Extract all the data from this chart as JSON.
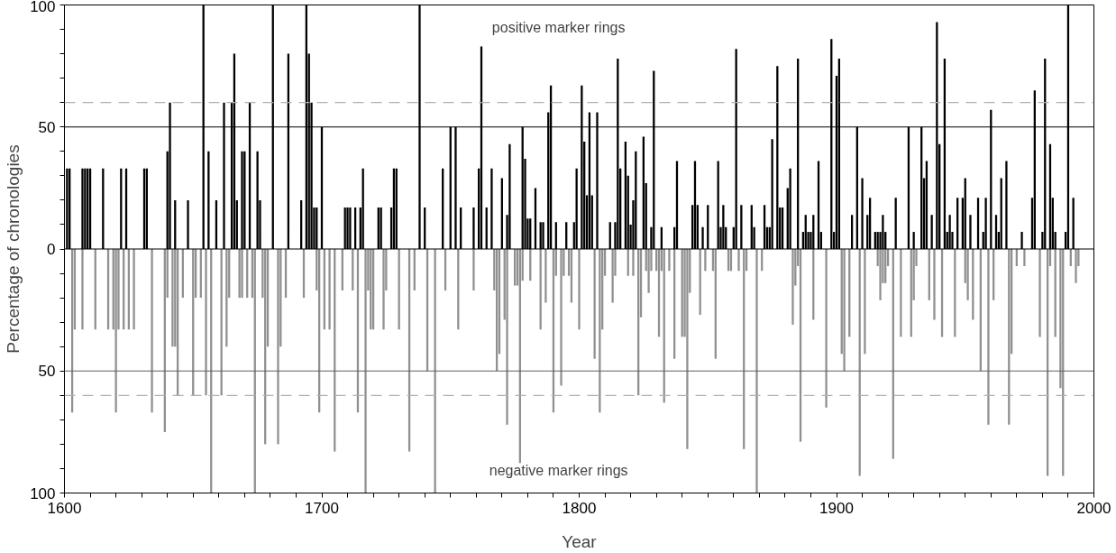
{
  "chart_data": {
    "type": "bar",
    "xlabel": "Year",
    "ylabel": "Percentage of chronologies",
    "annotations": [
      "positive marker rings",
      "negative marker rings"
    ],
    "xlim": [
      1600,
      2000
    ],
    "ylim": [
      -100,
      100
    ],
    "xticks": [
      1600,
      {
        "value": 1610,
        "label": null
      },
      {
        "value": 1620,
        "label": null
      },
      {
        "value": 1630,
        "label": null
      },
      {
        "value": 1640,
        "label": null
      },
      {
        "value": 1650,
        "label": null
      },
      {
        "value": 1660,
        "label": null
      },
      {
        "value": 1670,
        "label": null
      },
      {
        "value": 1680,
        "label": null
      },
      {
        "value": 1690,
        "label": null
      },
      1700,
      {
        "value": 1710,
        "label": null
      },
      {
        "value": 1720,
        "label": null
      },
      {
        "value": 1730,
        "label": null
      },
      {
        "value": 1740,
        "label": null
      },
      {
        "value": 1750,
        "label": null
      },
      {
        "value": 1760,
        "label": null
      },
      {
        "value": 1770,
        "label": null
      },
      {
        "value": 1780,
        "label": null
      },
      {
        "value": 1790,
        "label": null
      },
      1800,
      {
        "value": 1810,
        "label": null
      },
      {
        "value": 1820,
        "label": null
      },
      {
        "value": 1830,
        "label": null
      },
      {
        "value": 1840,
        "label": null
      },
      {
        "value": 1850,
        "label": null
      },
      {
        "value": 1860,
        "label": null
      },
      {
        "value": 1870,
        "label": null
      },
      {
        "value": 1880,
        "label": null
      },
      {
        "value": 1890,
        "label": null
      },
      1900,
      {
        "value": 1910,
        "label": null
      },
      {
        "value": 1920,
        "label": null
      },
      {
        "value": 1930,
        "label": null
      },
      {
        "value": 1940,
        "label": null
      },
      {
        "value": 1950,
        "label": null
      },
      {
        "value": 1960,
        "label": null
      },
      {
        "value": 1970,
        "label": null
      },
      {
        "value": 1980,
        "label": null
      },
      {
        "value": 1990,
        "label": null
      },
      2000
    ],
    "yticks": [
      {
        "value": -100,
        "label": "100"
      },
      {
        "value": -90,
        "label": null
      },
      {
        "value": -80,
        "label": null
      },
      {
        "value": -70,
        "label": null
      },
      {
        "value": -60,
        "label": null
      },
      {
        "value": -50,
        "label": "50"
      },
      {
        "value": -40,
        "label": null
      },
      {
        "value": -30,
        "label": null
      },
      {
        "value": -20,
        "label": null
      },
      {
        "value": -10,
        "label": null
      },
      0,
      {
        "value": 10,
        "label": null
      },
      {
        "value": 20,
        "label": null
      },
      {
        "value": 30,
        "label": null
      },
      {
        "value": 40,
        "label": null
      },
      50,
      {
        "value": 60,
        "label": null
      },
      {
        "value": 70,
        "label": null
      },
      {
        "value": 80,
        "label": null
      },
      {
        "value": 90,
        "label": null
      },
      100
    ],
    "ref_lines": [
      {
        "axis": "y",
        "value": 50,
        "color": "#000000",
        "line_style": "solid"
      },
      {
        "axis": "y",
        "value": -50,
        "color": "#606060",
        "line_style": "solid"
      },
      {
        "axis": "y",
        "value": 60,
        "color": "#b0b0b0",
        "line_style": "dashed"
      },
      {
        "axis": "y",
        "value": -60,
        "color": "#b0b0b0",
        "line_style": "dashed"
      },
      {
        "axis": "y",
        "value": 0,
        "color": "#000000",
        "line_style": "solid"
      }
    ],
    "grid": false,
    "series": [
      {
        "color": "#000000",
        "x": [
          1601,
          1602,
          1607,
          1608,
          1609,
          1610,
          1615,
          1622,
          1624,
          1631,
          1632,
          1640,
          1641,
          1643,
          1648,
          1654,
          1656,
          1659,
          1662,
          1665,
          1666,
          1667,
          1669,
          1670,
          1672,
          1675,
          1676,
          1681,
          1687,
          1692,
          1694,
          1695,
          1696,
          1697,
          1698,
          1700,
          1709,
          1710,
          1711,
          1713,
          1715,
          1716,
          1722,
          1723,
          1727,
          1728,
          1729,
          1738,
          1740,
          1747,
          1750,
          1752,
          1754,
          1759,
          1761,
          1762,
          1764,
          1766,
          1770,
          1772,
          1773,
          1778,
          1779,
          1780,
          1781,
          1783,
          1785,
          1786,
          1788,
          1789,
          1791,
          1795,
          1798,
          1799,
          1801,
          1802,
          1803,
          1804,
          1805,
          1807,
          1812,
          1814,
          1815,
          1816,
          1818,
          1819,
          1820,
          1821,
          1822,
          1825,
          1826,
          1828,
          1829,
          1832,
          1837,
          1838,
          1844,
          1845,
          1846,
          1848,
          1850,
          1854,
          1855,
          1856,
          1857,
          1860,
          1861,
          1863,
          1867,
          1868,
          1872,
          1873,
          1874,
          1875,
          1877,
          1878,
          1879,
          1881,
          1882,
          1885,
          1887,
          1888,
          1889,
          1890,
          1891,
          1893,
          1894,
          1898,
          1899,
          1900,
          1901,
          1906,
          1908,
          1910,
          1912,
          1913,
          1915,
          1916,
          1917,
          1918,
          1919,
          1923,
          1928,
          1930,
          1933,
          1934,
          1935,
          1937,
          1939,
          1940,
          1942,
          1943,
          1944,
          1945,
          1947,
          1949,
          1950,
          1952,
          1955,
          1957,
          1958,
          1960,
          1962,
          1963,
          1964,
          1966,
          1972,
          1976,
          1977,
          1980,
          1981,
          1983,
          1984,
          1985,
          1989,
          1990,
          1992
        ],
        "values": [
          33,
          33,
          33,
          33,
          33,
          33,
          33,
          33,
          33,
          33,
          33,
          40,
          60,
          20,
          20,
          100,
          40,
          20,
          60,
          60,
          80,
          20,
          40,
          40,
          60,
          40,
          20,
          100,
          80,
          20,
          100,
          80,
          60,
          17,
          17,
          50,
          17,
          17,
          17,
          17,
          17,
          33,
          17,
          17,
          17,
          33,
          33,
          100,
          17,
          33,
          50,
          50,
          17,
          17,
          33,
          83,
          17,
          33,
          29,
          14,
          43,
          50,
          37,
          12.5,
          12.5,
          25,
          11,
          11,
          56,
          67,
          11,
          11,
          11,
          33,
          67,
          44,
          22,
          56,
          22,
          56,
          11,
          11,
          78,
          33,
          44,
          30,
          10,
          20,
          40,
          46,
          27,
          9,
          73,
          9,
          9,
          36,
          18,
          36,
          18,
          9,
          18,
          36,
          9,
          18,
          9,
          9,
          82,
          18,
          18,
          9,
          18,
          9,
          9,
          45,
          75,
          17,
          17,
          25,
          33,
          78,
          7,
          14,
          7,
          7,
          14,
          36,
          7,
          86,
          7,
          71,
          78,
          14,
          50,
          29,
          14,
          21,
          7,
          7,
          7,
          14,
          7,
          21,
          50,
          7,
          50,
          29,
          36,
          14,
          93,
          43,
          78,
          7,
          14,
          7,
          21,
          21,
          29,
          14,
          21,
          7,
          21,
          57,
          14,
          7,
          29,
          36,
          7,
          21,
          65,
          7,
          78,
          43,
          21,
          7,
          7,
          100,
          21
        ]
      },
      {
        "color": "#909090",
        "x": [
          1603,
          1604,
          1607,
          1612,
          1617,
          1619,
          1620,
          1621,
          1623,
          1625,
          1627,
          1634,
          1639,
          1640,
          1642,
          1643,
          1644,
          1646,
          1650,
          1651,
          1653,
          1655,
          1657,
          1661,
          1663,
          1664,
          1668,
          1669,
          1671,
          1673,
          1674,
          1677,
          1678,
          1679,
          1683,
          1684,
          1686,
          1693,
          1698,
          1699,
          1701,
          1703,
          1705,
          1708,
          1712,
          1714,
          1717,
          1718,
          1719,
          1720,
          1724,
          1725,
          1730,
          1734,
          1736,
          1741,
          1744,
          1748,
          1753,
          1759,
          1767,
          1768,
          1769,
          1771,
          1772,
          1775,
          1776,
          1777,
          1778,
          1781,
          1785,
          1787,
          1790,
          1791,
          1793,
          1794,
          1796,
          1797,
          1800,
          1806,
          1808,
          1809,
          1810,
          1813,
          1814,
          1819,
          1821,
          1823,
          1824,
          1826,
          1827,
          1828,
          1830,
          1831,
          1832,
          1833,
          1835,
          1837,
          1840,
          1841,
          1842,
          1843,
          1847,
          1849,
          1852,
          1853,
          1858,
          1859,
          1862,
          1864,
          1865,
          1869,
          1871,
          1883,
          1884,
          1885,
          1886,
          1891,
          1896,
          1902,
          1903,
          1905,
          1909,
          1911,
          1916,
          1917,
          1918,
          1919,
          1920,
          1922,
          1925,
          1929,
          1930,
          1931,
          1936,
          1938,
          1941,
          1946,
          1950,
          1951,
          1953,
          1956,
          1959,
          1961,
          1967,
          1968,
          1970,
          1973,
          1979,
          1982,
          1983,
          1985,
          1987,
          1988,
          1991,
          1993,
          1994
        ],
        "values": [
          -67,
          -33,
          -33,
          -33,
          -33,
          -33,
          -67,
          -33,
          -33,
          -33,
          -33,
          -67,
          -75,
          -20,
          -40,
          -40,
          -60,
          -20,
          -60,
          -20,
          -20,
          -60,
          -100,
          -60,
          -40,
          -20,
          -20,
          -20,
          -20,
          -20,
          -100,
          -20,
          -80,
          -40,
          -80,
          -40,
          -20,
          -20,
          -17,
          -67,
          -33,
          -33,
          -83,
          -17,
          -17,
          -67,
          -100,
          -17,
          -33,
          -33,
          -33,
          -17,
          -33,
          -83,
          -17,
          -50,
          -100,
          -17,
          -33,
          -17,
          -17,
          -50,
          -43,
          -29,
          -72,
          -15,
          -15,
          -88,
          -13,
          -13,
          -33,
          -22,
          -67,
          -11,
          -56,
          -11,
          -11,
          -22,
          -33,
          -45,
          -67,
          -33,
          -11,
          -22,
          -11,
          -11,
          -11,
          -60,
          -28,
          -9,
          -18,
          -9,
          -9,
          -36,
          -9,
          -63,
          -9,
          -45,
          -36,
          -36,
          -82,
          -18,
          -27,
          -9,
          -9,
          -45,
          -9,
          -9,
          -9,
          -82,
          -9,
          -100,
          -9,
          -31,
          -15,
          -7,
          -79,
          -29,
          -65,
          -43,
          -50,
          -36,
          -93,
          -43,
          -7,
          -21,
          -14,
          -14,
          -7,
          -86,
          -36,
          -36,
          -21,
          -7,
          -21,
          -29,
          -36,
          -36,
          -14,
          -21,
          -29,
          -50,
          -72,
          -21,
          -72,
          -43,
          -7,
          -7,
          -36,
          -93,
          -7,
          -36,
          -57,
          -93,
          -7,
          -14,
          -7
        ]
      }
    ]
  }
}
